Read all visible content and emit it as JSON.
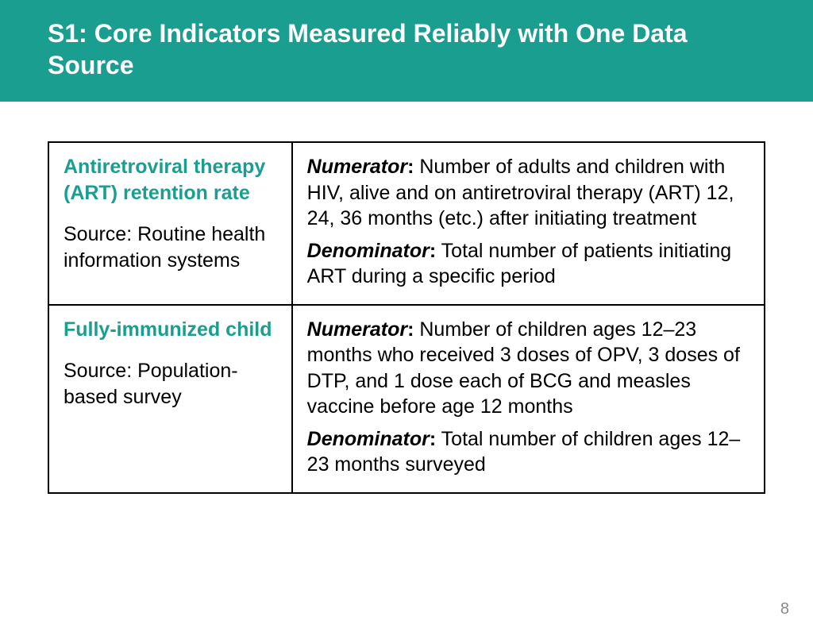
{
  "header": {
    "title": "S1: Core Indicators Measured Reliably with One Data Source",
    "bg_color": "#1a9e8f",
    "text_color": "#ffffff"
  },
  "accent_color": "#1a9e8f",
  "page_number": "8",
  "table": {
    "rows": [
      {
        "indicator_title": "Antiretroviral therapy (ART) retention rate",
        "source": "Source: Routine health information systems",
        "numerator_label": "Numerator",
        "numerator_text": " Number of adults and children with HIV, alive and on antiretroviral therapy (ART) 12, 24, 36 months (etc.) after initiating treatment",
        "denominator_label": "Denominator",
        "denominator_text": " Total number of patients initiating ART during a specific period"
      },
      {
        "indicator_title": "Fully-immunized child",
        "source": "Source: Population-based survey",
        "numerator_label": "Numerator",
        "numerator_text": " Number of children ages 12–23 months who received 3 doses of OPV, 3 doses of DTP, and 1 dose each of BCG and measles vaccine before age 12 months",
        "denominator_label": "Denominator",
        "denominator_text": " Total number of children ages 12–23 months surveyed"
      }
    ]
  }
}
